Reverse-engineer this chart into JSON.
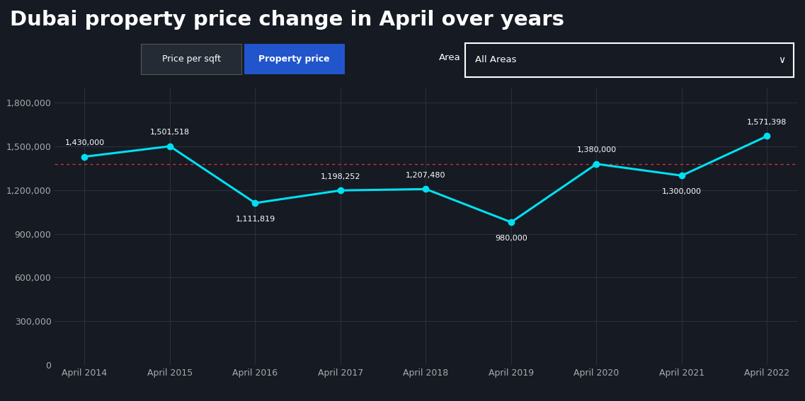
{
  "title": "Dubai property price change in April over years",
  "background_color": "#151a23",
  "line_color": "#00e0f0",
  "reference_line_color": "#cc3333",
  "grid_color": "#2a2f3a",
  "text_color": "#ffffff",
  "tick_color": "#aaaaaa",
  "categories": [
    "April 2014",
    "April 2015",
    "April 2016",
    "April 2017",
    "April 2018",
    "April 2019",
    "April 2020",
    "April 2021",
    "April 2022"
  ],
  "values": [
    1430000,
    1501518,
    1111819,
    1198252,
    1207480,
    980000,
    1380000,
    1300000,
    1571398
  ],
  "reference_line_value": 1380000,
  "ylim": [
    0,
    1900000
  ],
  "yticks": [
    0,
    300000,
    600000,
    900000,
    1200000,
    1500000,
    1800000
  ],
  "ytick_labels": [
    "0",
    "300,000",
    "600,000",
    "900,000",
    "1,200,000",
    "1,500,000",
    "1,800,000"
  ],
  "marker_size": 6,
  "line_width": 2.2,
  "title_fontsize": 21,
  "tick_fontsize": 9,
  "button1_text": "Price per sqft",
  "button2_text": "Property price",
  "button1_bg": "#252b35",
  "button2_bg": "#2255cc",
  "button_border": "#555555",
  "area_label": "Area",
  "area_value": "All Areas",
  "label_offsets": [
    70000,
    70000,
    -85000,
    70000,
    70000,
    -85000,
    70000,
    -85000,
    70000
  ],
  "label_h_offsets": [
    0,
    0,
    0,
    0,
    0,
    0,
    0,
    0,
    0
  ]
}
